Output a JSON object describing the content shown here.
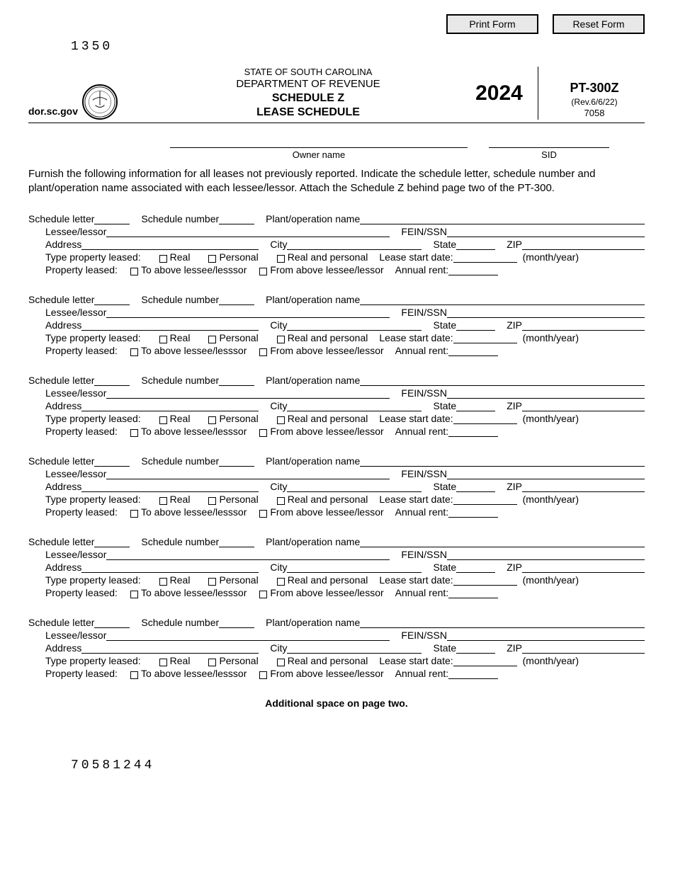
{
  "buttons": {
    "print": "Print Form",
    "reset": "Reset Form"
  },
  "code_top": "1350",
  "header": {
    "site": "dor.sc.gov",
    "line1": "STATE OF SOUTH CAROLINA",
    "line2": "DEPARTMENT OF REVENUE",
    "line3": "SCHEDULE Z",
    "line4": "LEASE SCHEDULE",
    "year": "2024",
    "formno": "PT-300Z",
    "rev": "(Rev.6/6/22)",
    "num": "7058"
  },
  "owner_label": "Owner name",
  "sid_label": "SID",
  "instructions": "Furnish the following information for all leases not previously reported. Indicate the schedule letter, schedule number and plant/operation name associated with each lessee/lessor. Attach the Schedule Z behind page two of the PT-300.",
  "labels": {
    "schedule_letter": "Schedule letter",
    "schedule_number": "Schedule number",
    "plant": "Plant/operation name",
    "lessee": "Lessee/lessor",
    "fein": "FEIN/SSN",
    "address": "Address",
    "city": "City",
    "state": "State",
    "zip": "ZIP",
    "type_property": "Type property leased:",
    "real": "Real",
    "personal": "Personal",
    "real_personal": "Real and personal",
    "lease_start": "Lease start date:",
    "month_year": "(month/year)",
    "property_leased": "Property leased:",
    "to_above": "To above lessee/lesssor",
    "from_above": "From above lessee/lessor",
    "annual_rent": "Annual rent:"
  },
  "footer_note": "Additional space on page two.",
  "bottom_code": "70581244",
  "block_count": 6
}
